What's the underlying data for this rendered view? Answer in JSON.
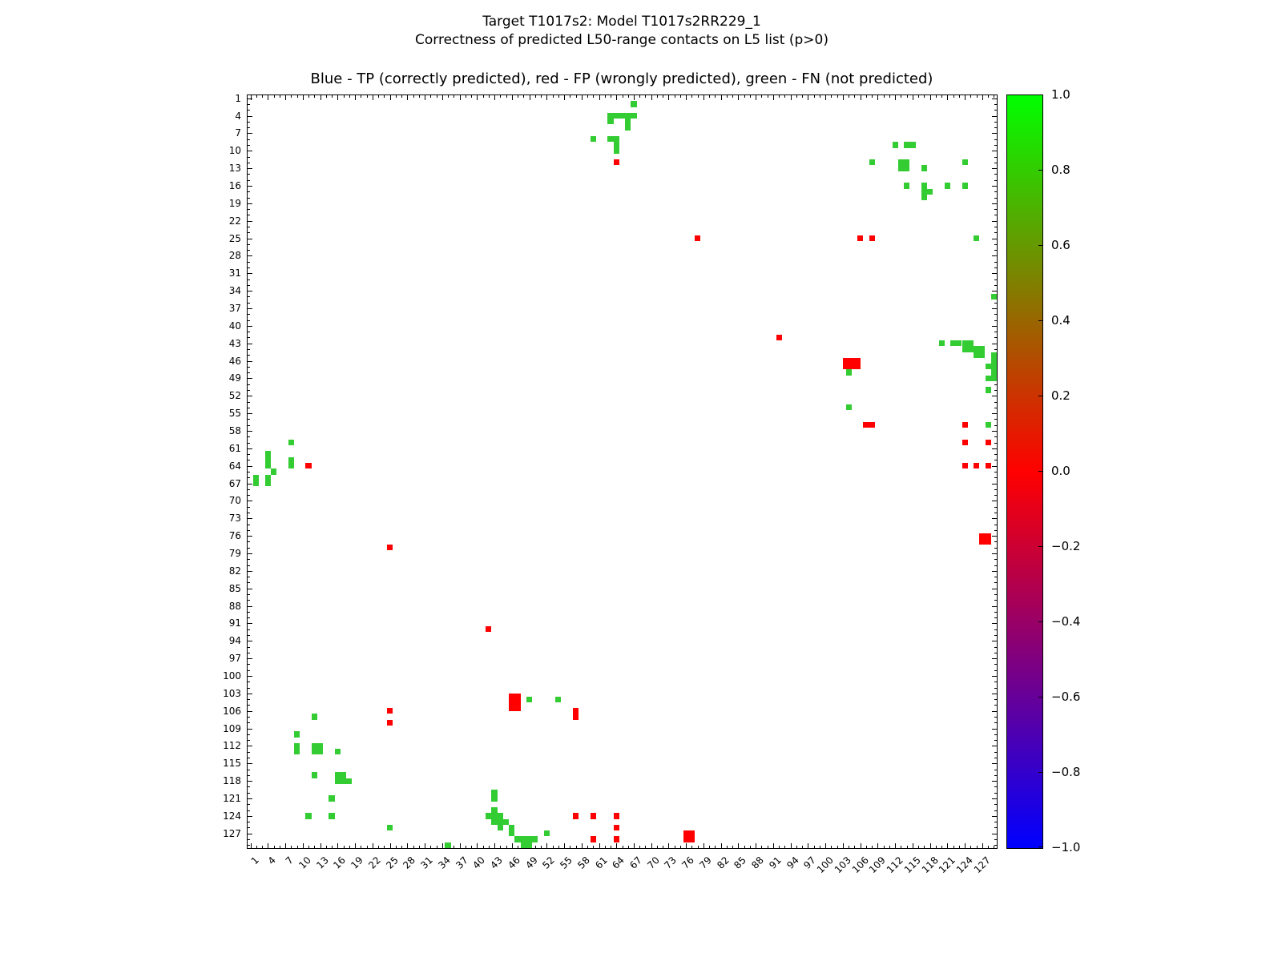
{
  "title": {
    "line1": "Target T1017s2: Model T1017s2RR229_1",
    "line2": "Correctness of predicted L50-range contacts on L5 list (p>0)"
  },
  "chart_data": {
    "type": "scatter",
    "subtitle": "Blue - TP (correctly predicted), red - FP (wrongly predicted), green - FN (not predicted)",
    "legend": {
      "TP": "blue (correctly predicted)",
      "FP": "red (wrongly predicted)",
      "FN": "green (not predicted)"
    },
    "axis": {
      "min": 1,
      "max": 129,
      "xticks": [
        1,
        4,
        7,
        10,
        13,
        16,
        19,
        22,
        25,
        28,
        31,
        34,
        37,
        40,
        43,
        46,
        49,
        52,
        55,
        58,
        61,
        64,
        67,
        70,
        73,
        76,
        79,
        82,
        85,
        88,
        91,
        94,
        97,
        100,
        103,
        106,
        109,
        112,
        115,
        118,
        121,
        124,
        127
      ],
      "yticks": [
        1,
        4,
        7,
        10,
        13,
        16,
        19,
        22,
        25,
        28,
        31,
        34,
        37,
        40,
        43,
        46,
        49,
        52,
        55,
        58,
        61,
        64,
        67,
        70,
        73,
        76,
        79,
        82,
        85,
        88,
        91,
        94,
        97,
        100,
        103,
        106,
        109,
        112,
        115,
        118,
        121,
        124,
        127
      ]
    },
    "colors": {
      "g": "#33cc33",
      "r": "#ff0000",
      "b": "#0000ff"
    },
    "colorbar": {
      "min": -1.0,
      "max": 1.0,
      "ticks": [
        "1.0",
        "0.8",
        "0.6",
        "0.4",
        "0.2",
        "0.0",
        "−0.2",
        "−0.4",
        "−0.6",
        "−0.8",
        "−1.0"
      ],
      "top_color": "#00ff00",
      "mid_color": "#ff0000",
      "bottom_color": "#0000ff"
    },
    "points": [
      [
        67,
        2,
        "g"
      ],
      [
        63,
        4,
        "g"
      ],
      [
        64,
        4,
        "g"
      ],
      [
        65,
        4,
        "g"
      ],
      [
        66,
        4,
        "g"
      ],
      [
        67,
        4,
        "g"
      ],
      [
        63,
        5,
        "g"
      ],
      [
        66,
        5,
        "g"
      ],
      [
        66,
        6,
        "g"
      ],
      [
        60,
        8,
        "g"
      ],
      [
        63,
        8,
        "g"
      ],
      [
        64,
        8,
        "g"
      ],
      [
        64,
        9,
        "g"
      ],
      [
        64,
        10,
        "g"
      ],
      [
        64,
        12,
        "r"
      ],
      [
        112,
        9,
        "g"
      ],
      [
        114,
        9,
        "g"
      ],
      [
        115,
        9,
        "g"
      ],
      [
        108,
        12,
        "g"
      ],
      [
        113.5,
        12.5,
        "g",
        2,
        2
      ],
      [
        117,
        13,
        "g"
      ],
      [
        124,
        12,
        "g"
      ],
      [
        114,
        16,
        "g"
      ],
      [
        117,
        16,
        "g"
      ],
      [
        117,
        17,
        "g"
      ],
      [
        118,
        17,
        "g"
      ],
      [
        117,
        18,
        "g"
      ],
      [
        121,
        16,
        "g"
      ],
      [
        124,
        16,
        "g"
      ],
      [
        78,
        25,
        "r"
      ],
      [
        106,
        25,
        "r"
      ],
      [
        108,
        25,
        "r"
      ],
      [
        126,
        25,
        "g"
      ],
      [
        129,
        35,
        "g"
      ],
      [
        92,
        42,
        "r"
      ],
      [
        120,
        43,
        "g"
      ],
      [
        122,
        43,
        "g"
      ],
      [
        123,
        43,
        "g"
      ],
      [
        124,
        43,
        "g"
      ],
      [
        125,
        43,
        "g"
      ],
      [
        124,
        44,
        "g"
      ],
      [
        125,
        44,
        "g"
      ],
      [
        126,
        44,
        "g"
      ],
      [
        127,
        44,
        "g"
      ],
      [
        126,
        45,
        "g"
      ],
      [
        127,
        45,
        "g"
      ],
      [
        129,
        45,
        "g"
      ],
      [
        129,
        46,
        "g"
      ],
      [
        104.5,
        46.5,
        "r",
        3,
        2
      ],
      [
        104,
        48,
        "g"
      ],
      [
        128,
        47,
        "g"
      ],
      [
        129,
        47,
        "g"
      ],
      [
        129,
        48,
        "g"
      ],
      [
        128,
        49,
        "g"
      ],
      [
        129,
        49,
        "g"
      ],
      [
        128,
        51,
        "g"
      ],
      [
        104,
        54,
        "g"
      ],
      [
        107.5,
        57,
        "r",
        2,
        1
      ],
      [
        124,
        57,
        "r"
      ],
      [
        128,
        57,
        "g"
      ],
      [
        124,
        60,
        "r"
      ],
      [
        128,
        60,
        "r"
      ],
      [
        8,
        60,
        "g"
      ],
      [
        4,
        62,
        "g"
      ],
      [
        4,
        63,
        "g"
      ],
      [
        4,
        64,
        "g"
      ],
      [
        8,
        63,
        "g"
      ],
      [
        8,
        64,
        "g"
      ],
      [
        11,
        64,
        "r"
      ],
      [
        5,
        65,
        "g"
      ],
      [
        2,
        66,
        "g"
      ],
      [
        2,
        67,
        "g"
      ],
      [
        4,
        66,
        "g"
      ],
      [
        4,
        67,
        "g"
      ],
      [
        124,
        64,
        "r"
      ],
      [
        126,
        64,
        "r"
      ],
      [
        128,
        64,
        "r"
      ],
      [
        25,
        78,
        "r"
      ],
      [
        127.5,
        76.5,
        "r",
        2,
        2
      ],
      [
        42,
        92,
        "r"
      ],
      [
        46.5,
        104.5,
        "r",
        2,
        3
      ],
      [
        49,
        104,
        "g"
      ],
      [
        54,
        104,
        "g"
      ],
      [
        25,
        106,
        "r"
      ],
      [
        25,
        108,
        "r"
      ],
      [
        57,
        106,
        "r"
      ],
      [
        57,
        107,
        "r"
      ],
      [
        12,
        107,
        "g"
      ],
      [
        9,
        110,
        "g"
      ],
      [
        9,
        112,
        "g"
      ],
      [
        9,
        113,
        "g"
      ],
      [
        12,
        112,
        "g"
      ],
      [
        13,
        112,
        "g"
      ],
      [
        12,
        113,
        "g"
      ],
      [
        13,
        113,
        "g"
      ],
      [
        16,
        113,
        "g"
      ],
      [
        12,
        117,
        "g"
      ],
      [
        16,
        117,
        "g"
      ],
      [
        17,
        117,
        "g"
      ],
      [
        16,
        118,
        "g"
      ],
      [
        17,
        118,
        "g"
      ],
      [
        18,
        118,
        "g"
      ],
      [
        15,
        121,
        "g"
      ],
      [
        11,
        124,
        "g"
      ],
      [
        15,
        124,
        "g"
      ],
      [
        25,
        126,
        "g"
      ],
      [
        43,
        120,
        "g"
      ],
      [
        43,
        121,
        "g"
      ],
      [
        43,
        123,
        "g"
      ],
      [
        42,
        124,
        "g"
      ],
      [
        43,
        124,
        "g"
      ],
      [
        44,
        124,
        "g"
      ],
      [
        43,
        125,
        "g"
      ],
      [
        44,
        125,
        "g"
      ],
      [
        45,
        125,
        "g"
      ],
      [
        44,
        126,
        "g"
      ],
      [
        46,
        126,
        "g"
      ],
      [
        46,
        127,
        "g"
      ],
      [
        52,
        127,
        "g"
      ],
      [
        47,
        128,
        "g"
      ],
      [
        48,
        128,
        "g"
      ],
      [
        49,
        128,
        "g"
      ],
      [
        50,
        128,
        "g"
      ],
      [
        48,
        129,
        "g"
      ],
      [
        49,
        129,
        "g"
      ],
      [
        35,
        129,
        "g"
      ],
      [
        57,
        124,
        "r"
      ],
      [
        60,
        124,
        "r"
      ],
      [
        64,
        124,
        "r"
      ],
      [
        64,
        126,
        "r"
      ],
      [
        60,
        128,
        "r"
      ],
      [
        64,
        128,
        "r"
      ],
      [
        76.5,
        127.5,
        "r",
        2,
        2
      ]
    ]
  }
}
